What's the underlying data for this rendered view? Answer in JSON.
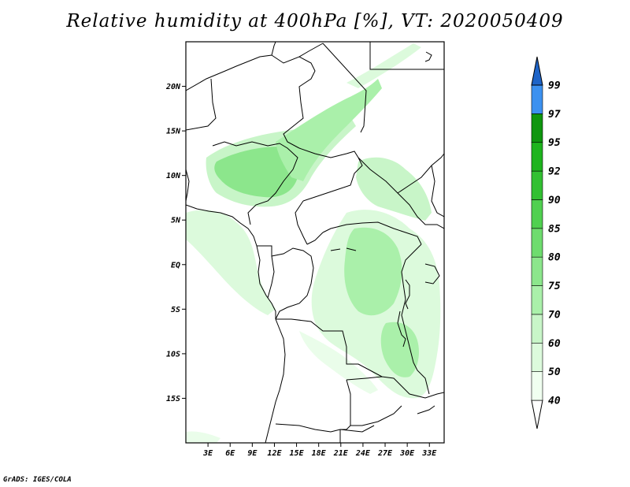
{
  "title": "Relative humidity at 400hPa [%], VT: 2020050409",
  "credit": "GrADS: IGES/COLA",
  "map": {
    "lon_range": [
      0,
      35
    ],
    "lat_range": [
      -20,
      25
    ],
    "lat_ticks": [
      {
        "value": 20,
        "label": "20N"
      },
      {
        "value": 15,
        "label": "15N"
      },
      {
        "value": 10,
        "label": "10N"
      },
      {
        "value": 5,
        "label": "5N"
      },
      {
        "value": 0,
        "label": "EQ"
      },
      {
        "value": -5,
        "label": "5S"
      },
      {
        "value": -10,
        "label": "10S"
      },
      {
        "value": -15,
        "label": "15S"
      }
    ],
    "lon_ticks": [
      {
        "value": 3,
        "label": "3E"
      },
      {
        "value": 6,
        "label": "6E"
      },
      {
        "value": 9,
        "label": "9E"
      },
      {
        "value": 12,
        "label": "12E"
      },
      {
        "value": 15,
        "label": "15E"
      },
      {
        "value": 18,
        "label": "18E"
      },
      {
        "value": 21,
        "label": "21E"
      },
      {
        "value": 24,
        "label": "24E"
      },
      {
        "value": 27,
        "label": "27E"
      },
      {
        "value": 30,
        "label": "30E"
      },
      {
        "value": 33,
        "label": "33E"
      }
    ]
  },
  "colorbar": {
    "levels": [
      "40",
      "50",
      "60",
      "70",
      "75",
      "80",
      "85",
      "90",
      "92",
      "95",
      "97",
      "99"
    ],
    "colors": [
      "#f0fff0",
      "#dcfadc",
      "#c8f5c8",
      "#aaf0aa",
      "#8ce68c",
      "#6edc6e",
      "#50d050",
      "#32c032",
      "#1eb41e",
      "#0f960f",
      "#3c91f0",
      "#2878dc",
      "#1e64c8"
    ]
  },
  "humidity_colors": {
    "light": "#eafdea",
    "medium": "#cdf7cd",
    "strong": "#a8eea8",
    "deep": "#80e080"
  }
}
